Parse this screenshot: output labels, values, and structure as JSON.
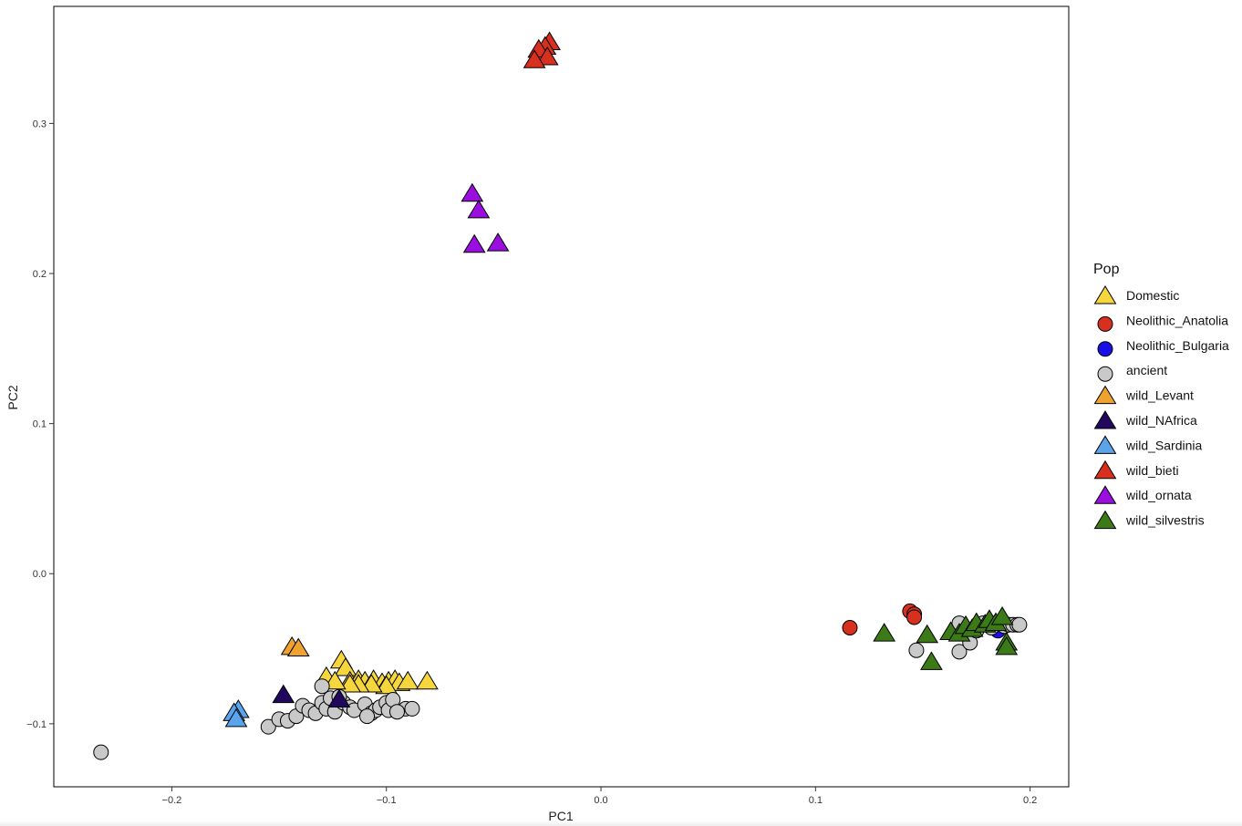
{
  "chart_data": {
    "type": "scatter",
    "xlabel": "PC1",
    "ylabel": "PC2",
    "xlim": [
      -0.255,
      0.218
    ],
    "ylim": [
      -0.142,
      0.378
    ],
    "xticks": [
      -0.2,
      -0.1,
      0.0,
      0.1,
      0.2
    ],
    "xtick_labels": [
      "−0.2",
      "−0.1",
      "0.0",
      "0.1",
      "0.2"
    ],
    "yticks": [
      -0.1,
      0.0,
      0.1,
      0.2,
      0.3
    ],
    "ytick_labels": [
      "−0.1",
      "0.0",
      "0.1",
      "0.2",
      "0.3"
    ],
    "grid": false,
    "legend_title": "Pop",
    "legend_position": "right",
    "series": [
      {
        "name": "Domestic",
        "shape": "triangle",
        "color": "#F5D63D",
        "points": [
          [
            -0.121,
            -0.058
          ],
          [
            -0.119,
            -0.063
          ],
          [
            -0.128,
            -0.069
          ],
          [
            -0.117,
            -0.072
          ],
          [
            -0.113,
            -0.071
          ],
          [
            -0.11,
            -0.072
          ],
          [
            -0.106,
            -0.071
          ],
          [
            -0.102,
            -0.073
          ],
          [
            -0.099,
            -0.072
          ],
          [
            -0.096,
            -0.071
          ],
          [
            -0.094,
            -0.073
          ],
          [
            -0.09,
            -0.072
          ],
          [
            -0.081,
            -0.072
          ],
          [
            -0.1,
            -0.075
          ],
          [
            -0.107,
            -0.074
          ],
          [
            -0.113,
            -0.074
          ],
          [
            -0.117,
            -0.074
          ],
          [
            -0.124,
            -0.072
          ]
        ]
      },
      {
        "name": "Neolithic_Anatolia",
        "shape": "circle",
        "color": "#D7301F",
        "points": [
          [
            0.116,
            -0.036
          ],
          [
            0.144,
            -0.025
          ],
          [
            0.146,
            -0.027
          ],
          [
            0.146,
            -0.029
          ]
        ]
      },
      {
        "name": "Neolithic_Bulgaria",
        "shape": "circle",
        "color": "#1B0FE8",
        "points": [
          [
            0.185,
            -0.038
          ]
        ]
      },
      {
        "name": "ancient",
        "shape": "circle",
        "color": "#C9C9C9",
        "points": [
          [
            -0.233,
            -0.119
          ],
          [
            -0.155,
            -0.102
          ],
          [
            -0.15,
            -0.097
          ],
          [
            -0.146,
            -0.098
          ],
          [
            -0.142,
            -0.095
          ],
          [
            -0.139,
            -0.088
          ],
          [
            -0.136,
            -0.091
          ],
          [
            -0.133,
            -0.093
          ],
          [
            -0.13,
            -0.086
          ],
          [
            -0.128,
            -0.09
          ],
          [
            -0.126,
            -0.083
          ],
          [
            -0.124,
            -0.092
          ],
          [
            -0.13,
            -0.075
          ],
          [
            -0.12,
            -0.086
          ],
          [
            -0.117,
            -0.089
          ],
          [
            -0.115,
            -0.091
          ],
          [
            -0.11,
            -0.087
          ],
          [
            -0.107,
            -0.093
          ],
          [
            -0.105,
            -0.091
          ],
          [
            -0.103,
            -0.089
          ],
          [
            -0.1,
            -0.086
          ],
          [
            -0.099,
            -0.091
          ],
          [
            -0.097,
            -0.084
          ],
          [
            -0.091,
            -0.09
          ],
          [
            -0.088,
            -0.09
          ],
          [
            -0.109,
            -0.095
          ],
          [
            -0.095,
            -0.092
          ],
          [
            -0.122,
            -0.082
          ],
          [
            0.147,
            -0.051
          ],
          [
            0.167,
            -0.033
          ],
          [
            0.167,
            -0.052
          ],
          [
            0.172,
            -0.046
          ],
          [
            0.175,
            -0.038
          ],
          [
            0.178,
            -0.033
          ],
          [
            0.182,
            -0.036
          ],
          [
            0.186,
            -0.033
          ],
          [
            0.188,
            -0.035
          ],
          [
            0.19,
            -0.034
          ],
          [
            0.192,
            -0.034
          ],
          [
            0.194,
            -0.034
          ],
          [
            0.195,
            -0.034
          ]
        ]
      },
      {
        "name": "wild_Levant",
        "shape": "triangle",
        "color": "#F0A22E",
        "points": [
          [
            -0.144,
            -0.049
          ],
          [
            -0.141,
            -0.05
          ]
        ]
      },
      {
        "name": "wild_NAfrica",
        "shape": "triangle",
        "color": "#22075E",
        "points": [
          [
            -0.148,
            -0.081
          ],
          [
            -0.122,
            -0.084
          ]
        ]
      },
      {
        "name": "wild_Sardinia",
        "shape": "triangle",
        "color": "#59A4EA",
        "points": [
          [
            -0.169,
            -0.091
          ],
          [
            -0.171,
            -0.093
          ],
          [
            -0.17,
            -0.097
          ]
        ]
      },
      {
        "name": "wild_bieti",
        "shape": "triangle",
        "color": "#D7301F",
        "points": [
          [
            -0.024,
            0.354
          ],
          [
            -0.026,
            0.351
          ],
          [
            -0.029,
            0.349
          ],
          [
            -0.025,
            0.344
          ],
          [
            -0.031,
            0.342
          ]
        ]
      },
      {
        "name": "wild_ornata",
        "shape": "triangle",
        "color": "#9A0FE0",
        "points": [
          [
            -0.06,
            0.253
          ],
          [
            -0.057,
            0.242
          ],
          [
            -0.059,
            0.219
          ],
          [
            -0.048,
            0.22
          ]
        ]
      },
      {
        "name": "wild_silvestris",
        "shape": "triangle",
        "color": "#3C7A18",
        "points": [
          [
            0.132,
            -0.04
          ],
          [
            0.152,
            -0.041
          ],
          [
            0.154,
            -0.059
          ],
          [
            0.163,
            -0.039
          ],
          [
            0.167,
            -0.04
          ],
          [
            0.17,
            -0.035
          ],
          [
            0.173,
            -0.037
          ],
          [
            0.175,
            -0.033
          ],
          [
            0.179,
            -0.034
          ],
          [
            0.181,
            -0.031
          ],
          [
            0.184,
            -0.033
          ],
          [
            0.187,
            -0.029
          ],
          [
            0.189,
            -0.046
          ],
          [
            0.189,
            -0.049
          ]
        ]
      }
    ]
  }
}
